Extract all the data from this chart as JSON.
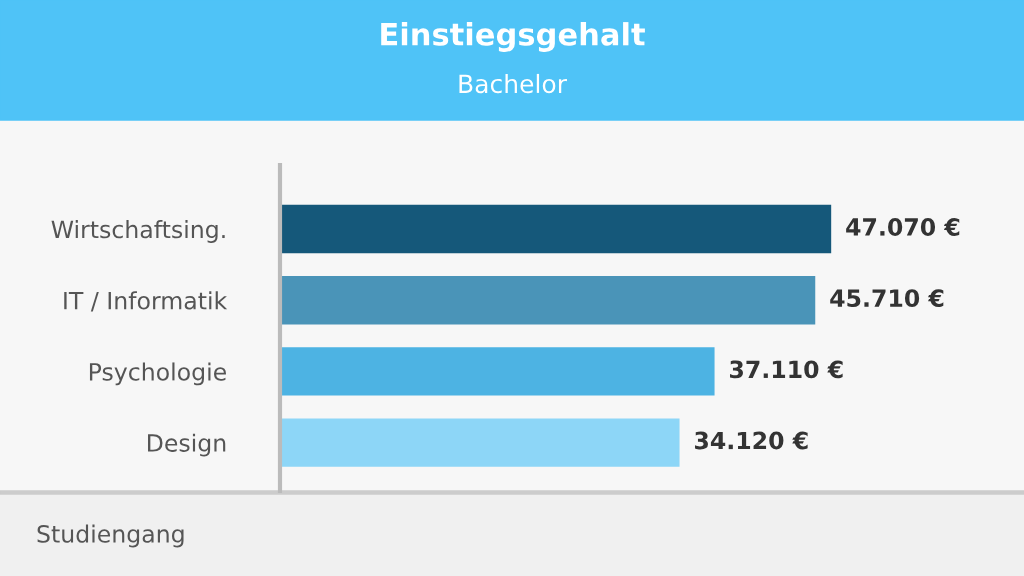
{
  "chart_data": {
    "type": "bar",
    "orientation": "horizontal",
    "title": "Einstiegsgehalt",
    "subtitle": "Bachelor",
    "ylabel": "Studiengang",
    "categories": [
      "Wirtschaftsing.",
      "IT / Informatik",
      "Psychologie",
      "Design"
    ],
    "values": [
      47070,
      45710,
      37110,
      34120
    ],
    "colors": [
      "#15587a",
      "#4a94b8",
      "#4db3e3",
      "#8dd6f7"
    ],
    "value_labels": [
      "47.070 €",
      "45.710 €",
      "37.110 €",
      "34.120 €"
    ],
    "grid": false,
    "legend": false
  }
}
